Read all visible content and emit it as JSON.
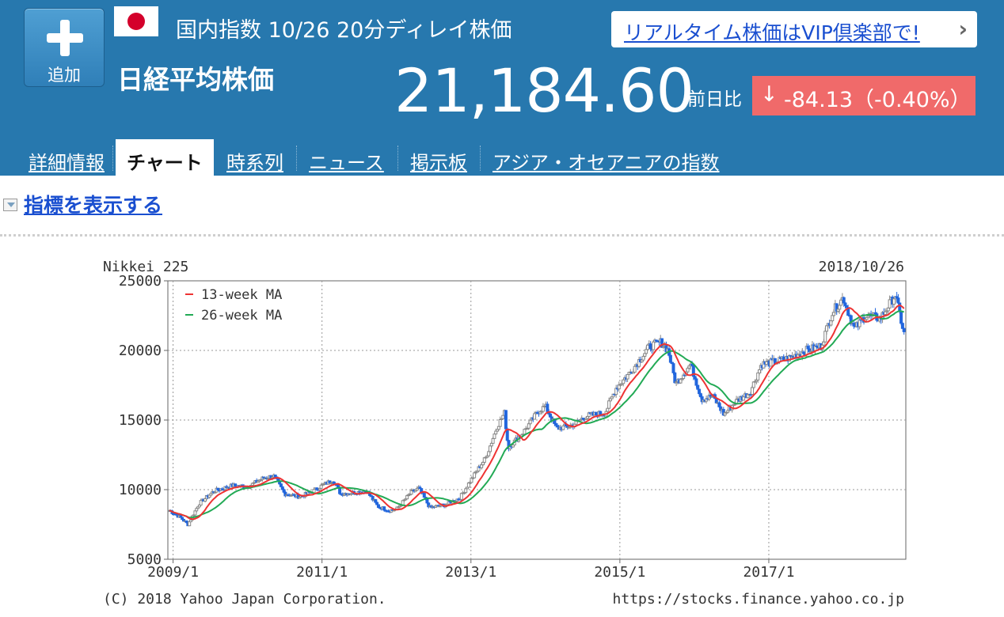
{
  "header": {
    "add_button_label": "追加",
    "market_info": "国内指数 10/26 20分ディレイ株価",
    "stock_name": "日経平均株価",
    "vip_link": "リアルタイム株価はVIP倶楽部で!",
    "price": "21,184.60",
    "prev_day_label": "前日比",
    "change_arrow": "↓",
    "change": "-84.13（-0.40%）",
    "colors": {
      "header_bg": "#2778ae",
      "change_bg": "#f06a6a",
      "link": "#1a4fd0"
    },
    "icons": {
      "flag": "japan-flag-icon",
      "add": "plus-icon",
      "vip": "chevron-right-icon"
    }
  },
  "tabs": [
    {
      "label": "詳細情報",
      "active": false
    },
    {
      "label": "チャート",
      "active": true
    },
    {
      "label": "時系列",
      "active": false
    },
    {
      "label": "ニュース",
      "active": false
    },
    {
      "label": "掲示板",
      "active": false
    },
    {
      "label": "アジア・オセアニアの指数",
      "active": false
    }
  ],
  "indicator_toggle": "指標を表示する",
  "chart_data": {
    "type": "candlestick",
    "title": "Nikkei 225",
    "date": "2018/10/26",
    "ylim": [
      5000,
      25000
    ],
    "yticks": [
      "25000",
      "20000",
      "15000",
      "10000",
      "5000"
    ],
    "xticks": [
      "2009/1",
      "2011/1",
      "2013/1",
      "2015/1",
      "2017/1"
    ],
    "x_range": [
      "2008/12",
      "2018/10"
    ],
    "grid": true,
    "legend_position": "top-left",
    "colors": {
      "ma13": "#e33",
      "ma26": "#2a5",
      "up": "#888",
      "down": "#2266dd"
    },
    "legend": [
      "13-week MA",
      "26-week MA"
    ],
    "footer_left": "(C) 2018 Yahoo Japan Corporation.",
    "footer_right": "https://stocks.finance.yahoo.co.jp",
    "price_path": [
      [
        2008.95,
        8500
      ],
      [
        2009.1,
        8000
      ],
      [
        2009.2,
        7500
      ],
      [
        2009.35,
        9000
      ],
      [
        2009.55,
        9900
      ],
      [
        2009.8,
        10300
      ],
      [
        2010.0,
        10200
      ],
      [
        2010.2,
        10800
      ],
      [
        2010.35,
        11000
      ],
      [
        2010.5,
        9700
      ],
      [
        2010.7,
        9500
      ],
      [
        2010.85,
        9800
      ],
      [
        2011.0,
        10300
      ],
      [
        2011.15,
        10700
      ],
      [
        2011.25,
        9700
      ],
      [
        2011.45,
        9800
      ],
      [
        2011.6,
        9900
      ],
      [
        2011.75,
        8800
      ],
      [
        2011.9,
        8500
      ],
      [
        2012.0,
        8600
      ],
      [
        2012.2,
        9800
      ],
      [
        2012.3,
        10100
      ],
      [
        2012.45,
        8700
      ],
      [
        2012.65,
        8900
      ],
      [
        2012.85,
        9400
      ],
      [
        2013.0,
        10700
      ],
      [
        2013.2,
        12300
      ],
      [
        2013.35,
        14500
      ],
      [
        2013.45,
        15500
      ],
      [
        2013.5,
        13000
      ],
      [
        2013.7,
        14100
      ],
      [
        2013.9,
        15600
      ],
      [
        2014.0,
        16000
      ],
      [
        2014.15,
        14400
      ],
      [
        2014.35,
        14600
      ],
      [
        2014.55,
        15300
      ],
      [
        2014.8,
        15500
      ],
      [
        2014.95,
        17300
      ],
      [
        2015.15,
        18500
      ],
      [
        2015.4,
        20300
      ],
      [
        2015.55,
        20600
      ],
      [
        2015.65,
        20000
      ],
      [
        2015.75,
        17600
      ],
      [
        2015.95,
        19000
      ],
      [
        2016.1,
        16500
      ],
      [
        2016.25,
        16700
      ],
      [
        2016.4,
        15400
      ],
      [
        2016.55,
        16300
      ],
      [
        2016.75,
        17000
      ],
      [
        2016.9,
        19000
      ],
      [
        2017.1,
        19200
      ],
      [
        2017.3,
        19500
      ],
      [
        2017.5,
        20000
      ],
      [
        2017.7,
        20300
      ],
      [
        2017.85,
        22700
      ],
      [
        2018.0,
        23800
      ],
      [
        2018.15,
        21500
      ],
      [
        2018.3,
        22500
      ],
      [
        2018.5,
        22300
      ],
      [
        2018.7,
        24000
      ],
      [
        2018.82,
        21100
      ]
    ]
  }
}
